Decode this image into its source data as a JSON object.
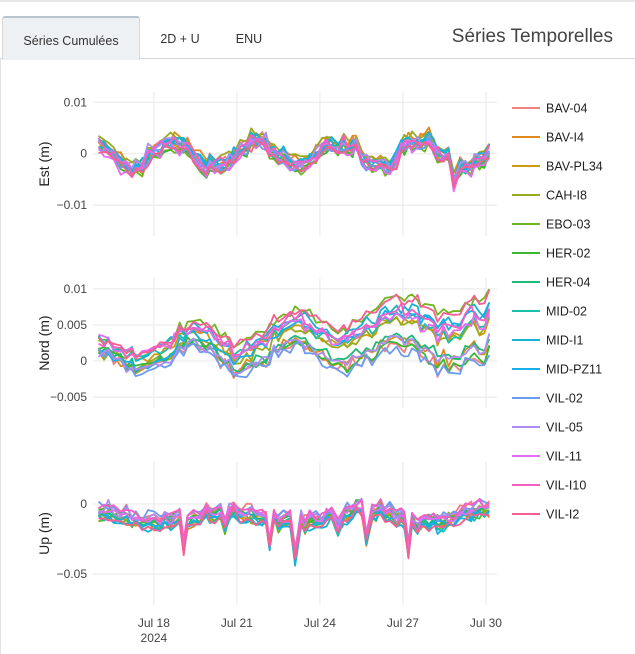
{
  "tabs": [
    {
      "label": "Séries Cumulées",
      "active": true
    },
    {
      "label": "2D + U",
      "active": false
    },
    {
      "label": "ENU",
      "active": false
    }
  ],
  "app_title": "Séries Temporelles",
  "colors": {
    "tab_bg": "#eef1f4",
    "grid": "#e8e8e8",
    "text": "#333333"
  },
  "chart_data": {
    "type": "line",
    "x_ticks": [
      {
        "label": "Jul 18",
        "sub": "2024",
        "day": 18
      },
      {
        "label": "Jul 21",
        "sub": "",
        "day": 21
      },
      {
        "label": "Jul 24",
        "sub": "",
        "day": 24
      },
      {
        "label": "Jul 27",
        "sub": "",
        "day": 27
      },
      {
        "label": "Jul 30",
        "sub": "",
        "day": 30
      }
    ],
    "x_range_days": [
      15.8,
      30.4
    ],
    "panels": [
      {
        "ylabel": "Est (m)",
        "ylim": [
          -0.016,
          0.012
        ],
        "ticks": [
          {
            "v": 0.01,
            "label": "0.01"
          },
          {
            "v": 0,
            "label": "0"
          },
          {
            "v": -0.01,
            "label": "−0.01"
          }
        ]
      },
      {
        "ylabel": "Nord (m)",
        "ylim": [
          -0.0065,
          0.0115
        ],
        "ticks": [
          {
            "v": 0.01,
            "label": "0.01"
          },
          {
            "v": 0.005,
            "label": "0.005"
          },
          {
            "v": 0,
            "label": "0"
          },
          {
            "v": -0.005,
            "label": "−0.005"
          }
        ]
      },
      {
        "ylabel": "Up (m)",
        "ylim": [
          -0.072,
          0.03
        ],
        "ticks": [
          {
            "v": 0,
            "label": "0"
          },
          {
            "v": -0.05,
            "label": "−0.05"
          }
        ]
      }
    ],
    "series": [
      {
        "name": "BAV-04",
        "color": "#f07f7f"
      },
      {
        "name": "BAV-I4",
        "color": "#e08a20"
      },
      {
        "name": "BAV-PL34",
        "color": "#cf9a10"
      },
      {
        "name": "CAH-I8",
        "color": "#98ab1c"
      },
      {
        "name": "EBO-03",
        "color": "#6fb51e"
      },
      {
        "name": "HER-02",
        "color": "#38b832"
      },
      {
        "name": "HER-04",
        "color": "#1dbb78"
      },
      {
        "name": "MID-02",
        "color": "#19c0aa"
      },
      {
        "name": "MID-I1",
        "color": "#15b4d2"
      },
      {
        "name": "MID-PZ11",
        "color": "#18aee8"
      },
      {
        "name": "VIL-02",
        "color": "#6c9cf2"
      },
      {
        "name": "VIL-05",
        "color": "#ad8cf4"
      },
      {
        "name": "VIL-11",
        "color": "#e26cf2"
      },
      {
        "name": "VIL-I10",
        "color": "#f55ec3"
      },
      {
        "name": "VIL-I2",
        "color": "#f75f93"
      }
    ]
  }
}
